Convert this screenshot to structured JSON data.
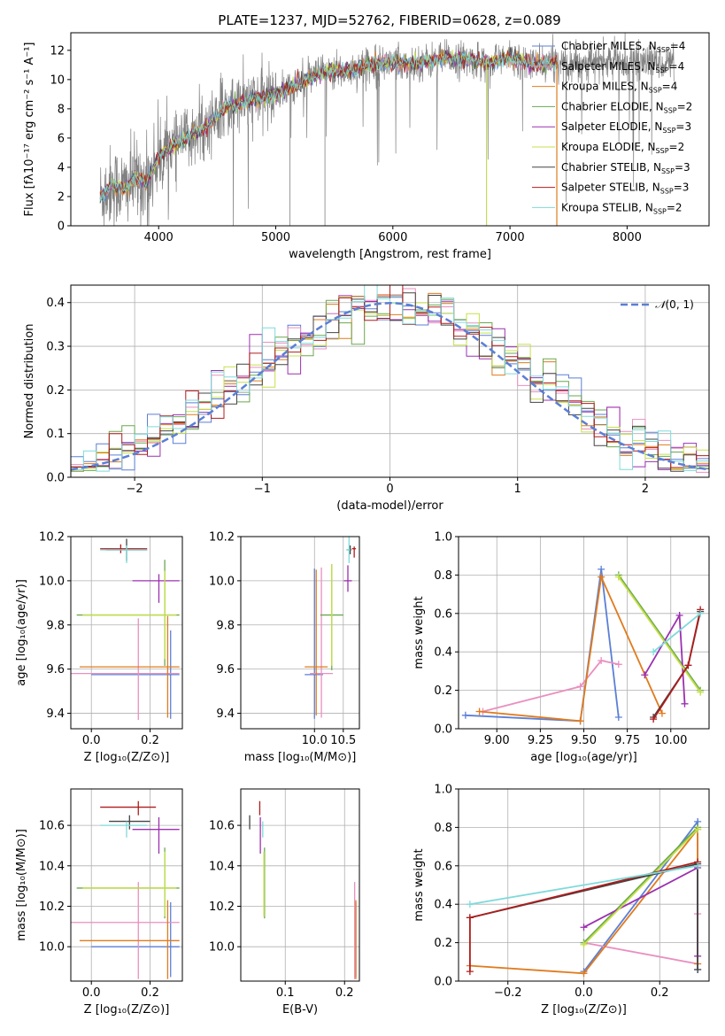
{
  "figure": {
    "title": "PLATE=1237, MJD=52762, FIBERID=0628, z=0.089"
  },
  "series_styles": [
    {
      "name": "Chabrier MILES, N_SSP=4",
      "label": "Chabrier MILES, N",
      "n": "=4",
      "color": "#5b7fd6"
    },
    {
      "name": "Salpeter MILES, N_SSP=4",
      "label": "Salpeter MILES, N",
      "n": "=4",
      "color": "#e98fbf"
    },
    {
      "name": "Kroupa MILES, N_SSP=4",
      "label": "Kroupa MILES, N",
      "n": "=4",
      "color": "#e07b1d"
    },
    {
      "name": "Chabrier ELODIE, N_SSP=2",
      "label": "Chabrier ELODIE, N",
      "n": "=2",
      "color": "#6aa84f"
    },
    {
      "name": "Salpeter ELODIE, N_SSP=3",
      "label": "Salpeter ELODIE, N",
      "n": "=3",
      "color": "#9b30b0"
    },
    {
      "name": "Kroupa ELODIE, N_SSP=2",
      "label": "Kroupa ELODIE, N",
      "n": "=2",
      "color": "#c5e04a"
    },
    {
      "name": "Chabrier STELIB, N_SSP=3",
      "label": "Chabrier STELIB, N",
      "n": "=3",
      "color": "#444444"
    },
    {
      "name": "Salpeter STELIB, N_SSP=3",
      "label": "Salpeter STELIB, N",
      "n": "=3",
      "color": "#b01c1c"
    },
    {
      "name": "Kroupa STELIB, N_SSP=2",
      "label": "Kroupa STELIB, N",
      "n": "=2",
      "color": "#7fdada"
    }
  ],
  "legend_subscript": "SSP",
  "chart_data": [
    {
      "id": "spectrum",
      "type": "line",
      "xlabel": "wavelength [Angstrom, rest frame]",
      "ylabel": "Flux [fλ10⁻¹⁷ erg cm⁻² s⁻¹ A⁻¹]",
      "xlim": [
        3250,
        8700
      ],
      "ylim": [
        0,
        13.2
      ],
      "xticks": [
        4000,
        5000,
        6000,
        7000,
        8000
      ],
      "yticks": [
        0,
        2,
        4,
        6,
        8,
        10,
        12
      ],
      "data_series": {
        "name": "data",
        "color": "#808080"
      },
      "model_anchors": {
        "x": [
          3500,
          3600,
          3700,
          3800,
          3900,
          4000,
          4100,
          4200,
          4300,
          4400,
          4500,
          4600,
          4800,
          5000,
          5200,
          5400,
          5600,
          5800,
          6000,
          6200,
          6400,
          6600,
          6800,
          7000,
          7200,
          7400
        ],
        "y": [
          2.0,
          2.8,
          2.5,
          3.2,
          3.0,
          4.7,
          5.4,
          5.8,
          6.3,
          6.7,
          7.6,
          8.2,
          8.6,
          9.0,
          9.7,
          10.5,
          10.6,
          11.0,
          11.2,
          11.1,
          11.4,
          11.4,
          11.2,
          11.5,
          11.0,
          11.2
        ]
      },
      "grid": false,
      "legend": "top-right"
    },
    {
      "id": "residuals",
      "type": "histogram",
      "xlabel": "(data-model)/error",
      "ylabel": "Normed distribution",
      "xlim": [
        -2.5,
        2.5
      ],
      "ylim": [
        0,
        0.44
      ],
      "xticks": [
        -2,
        -1,
        0,
        1,
        2
      ],
      "yticks": [
        0.0,
        0.1,
        0.2,
        0.3,
        0.4
      ],
      "bin_width": 0.1,
      "overlay": {
        "name": "N(0,1)",
        "label_main": "𝒩",
        "label_args": "(0, 1)",
        "mean": 0,
        "sigma": 1,
        "color": "#5b7fd6"
      },
      "grid": true,
      "legend": "top-right"
    },
    {
      "id": "age_vs_Z",
      "type": "errorbar",
      "xlabel": "Z [log₁₀(Z/Z⊙)]",
      "ylabel": "age  [log₁₀(age/yr)]",
      "xlim": [
        -0.07,
        0.31
      ],
      "ylim": [
        9.33,
        10.2
      ],
      "xticks": [
        0.0,
        0.2
      ],
      "yticks": [
        9.4,
        9.6,
        9.8,
        10.0,
        10.2
      ],
      "points": [
        {
          "series": 0,
          "x": 0.27,
          "y": 9.575,
          "xerr": [
            0.27,
            0.03
          ],
          "yerr": [
            0.2,
            0.2
          ]
        },
        {
          "series": 1,
          "x": 0.16,
          "y": 9.58,
          "xerr": [
            0.23,
            0.14
          ],
          "yerr": [
            0.21,
            0.25
          ]
        },
        {
          "series": 2,
          "x": 0.26,
          "y": 9.61,
          "xerr": [
            0.3,
            0.04
          ],
          "yerr": [
            0.23,
            0.23
          ]
        },
        {
          "series": 3,
          "x": 0.25,
          "y": 9.845,
          "xerr": [
            0.3,
            0.05
          ],
          "yerr": [
            0.23,
            0.25
          ]
        },
        {
          "series": 4,
          "x": 0.23,
          "y": 10.0,
          "xerr": [
            0.09,
            0.07
          ],
          "yerr": [
            0.1,
            0.03
          ]
        },
        {
          "series": 5,
          "x": 0.25,
          "y": 9.845,
          "xerr": [
            0.28,
            0.04
          ],
          "yerr": [
            0.2,
            0.2
          ]
        },
        {
          "series": 6,
          "x": 0.12,
          "y": 10.14,
          "xerr": [
            0.07,
            0.07
          ],
          "yerr": [
            0.05,
            0.05
          ]
        },
        {
          "series": 7,
          "x": 0.1,
          "y": 10.145,
          "xerr": [
            0.07,
            0.09
          ],
          "yerr": [
            0.02,
            0.02
          ]
        },
        {
          "series": 8,
          "x": 0.12,
          "y": 10.14,
          "xerr": [
            0.09,
            0.07
          ],
          "yerr": [
            0.06,
            0.02
          ]
        }
      ],
      "grid": true
    },
    {
      "id": "age_vs_mass",
      "type": "errorbar",
      "xlabel": "mass [log₁₀(M/M⊙)]",
      "ylabel": "",
      "xlim": [
        8.72,
        10.78
      ],
      "ylim": [
        9.33,
        10.2
      ],
      "xticks": [
        10.0,
        10.5
      ],
      "yticks": [
        9.4,
        9.6,
        9.8,
        10.0,
        10.2
      ],
      "points": [
        {
          "series": 0,
          "x": 10.0,
          "y": 9.575,
          "xerr": [
            0.17,
            0.15
          ],
          "yerr": [
            0.2,
            0.48
          ]
        },
        {
          "series": 1,
          "x": 10.12,
          "y": 9.58,
          "xerr": [
            0.2,
            0.2
          ],
          "yerr": [
            0.2,
            0.48
          ]
        },
        {
          "series": 2,
          "x": 10.03,
          "y": 9.61,
          "xerr": [
            0.2,
            0.2
          ],
          "yerr": [
            0.22,
            0.44
          ]
        },
        {
          "series": 3,
          "x": 10.3,
          "y": 9.845,
          "xerr": [
            0.2,
            0.2
          ],
          "yerr": [
            0.25,
            0.23
          ]
        },
        {
          "series": 4,
          "x": 10.58,
          "y": 10.0,
          "xerr": [
            0.07,
            0.07
          ],
          "yerr": [
            0.05,
            0.07
          ]
        },
        {
          "series": 5,
          "x": 10.3,
          "y": 9.845,
          "xerr": [
            0.01,
            0.01
          ],
          "yerr": [
            0.23,
            0.23
          ]
        },
        {
          "series": 6,
          "x": 10.62,
          "y": 10.14,
          "xerr": [
            0.05,
            0.02
          ],
          "yerr": [
            0.02,
            0.02
          ]
        },
        {
          "series": 7,
          "x": 10.69,
          "y": 10.145,
          "xerr": [
            0.04,
            0.03
          ],
          "yerr": [
            0.04,
            0.01
          ]
        },
        {
          "series": 8,
          "x": 10.6,
          "y": 10.14,
          "xerr": [
            0.05,
            0.02
          ],
          "yerr": [
            0.06,
            0.06
          ]
        }
      ],
      "grid": true
    },
    {
      "id": "weight_vs_age",
      "type": "line",
      "xlabel": "age  [log₁₀(age/yr)]",
      "ylabel": "mass weight",
      "xlim": [
        8.78,
        10.22
      ],
      "ylim": [
        0.0,
        1.0
      ],
      "xticks": [
        9.0,
        9.25,
        9.5,
        9.75,
        10.0
      ],
      "xtick_labels": [
        "9.00",
        "9.25",
        "9.50",
        "9.75",
        "10.00"
      ],
      "yticks": [
        0.0,
        0.2,
        0.4,
        0.6,
        0.8,
        1.0
      ],
      "series": [
        {
          "series": 0,
          "x": [
            8.82,
            9.48,
            9.6,
            9.7
          ],
          "y": [
            0.07,
            0.04,
            0.83,
            0.06
          ]
        },
        {
          "series": 1,
          "x": 8.92,
          "x_list": [
            8.92,
            9.48,
            9.6,
            9.7
          ],
          "y": [
            0.09,
            0.22,
            0.355,
            0.335
          ]
        },
        {
          "series": 2,
          "x": [
            8.9,
            9.48,
            9.6,
            9.95
          ],
          "y": [
            0.09,
            0.04,
            0.79,
            0.08
          ]
        },
        {
          "series": 3,
          "x": [
            9.7,
            10.17
          ],
          "y": [
            0.8,
            0.2
          ]
        },
        {
          "series": 4,
          "x": [
            9.85,
            10.05,
            10.08
          ],
          "y": [
            0.28,
            0.59,
            0.13
          ]
        },
        {
          "series": 5,
          "x": [
            9.7,
            10.17
          ],
          "y": [
            0.79,
            0.19
          ]
        },
        {
          "series": 6,
          "x": [
            9.9,
            10.1,
            10.17
          ],
          "y": [
            0.06,
            0.33,
            0.61
          ]
        },
        {
          "series": 7,
          "x": [
            9.9,
            10.1,
            10.17
          ],
          "y": [
            0.05,
            0.33,
            0.62
          ]
        },
        {
          "series": 8,
          "x": [
            9.9,
            10.17
          ],
          "y": [
            0.4,
            0.6
          ]
        }
      ],
      "grid": true
    },
    {
      "id": "mass_vs_Z",
      "type": "errorbar",
      "xlabel": "Z [log₁₀(Z/Z⊙)]",
      "ylabel": "mass [log₁₀(M/M⊙)]",
      "xlim": [
        -0.07,
        0.31
      ],
      "ylim": [
        9.83,
        10.78
      ],
      "xticks": [
        0.0,
        0.2
      ],
      "yticks": [
        10.0,
        10.2,
        10.4,
        10.6
      ],
      "points": [
        {
          "series": 0,
          "x": 0.27,
          "y": 10.0,
          "xerr": [
            0.27,
            0.03
          ],
          "yerr": [
            0.15,
            0.22
          ]
        },
        {
          "series": 1,
          "x": 0.16,
          "y": 10.12,
          "xerr": [
            0.23,
            0.14
          ],
          "yerr": [
            0.28,
            0.2
          ]
        },
        {
          "series": 2,
          "x": 0.26,
          "y": 10.03,
          "xerr": [
            0.3,
            0.04
          ],
          "yerr": [
            0.19,
            0.2
          ]
        },
        {
          "series": 3,
          "x": 0.25,
          "y": 10.29,
          "xerr": [
            0.3,
            0.05
          ],
          "yerr": [
            0.15,
            0.2
          ]
        },
        {
          "series": 4,
          "x": 0.23,
          "y": 10.58,
          "xerr": [
            0.09,
            0.07
          ],
          "yerr": [
            0.12,
            0.06
          ]
        },
        {
          "series": 5,
          "x": 0.25,
          "y": 10.29,
          "xerr": [
            0.28,
            0.04
          ],
          "yerr": [
            0.14,
            0.18
          ]
        },
        {
          "series": 6,
          "x": 0.13,
          "y": 10.62,
          "xerr": [
            0.07,
            0.07
          ],
          "yerr": [
            0.04,
            0.03
          ]
        },
        {
          "series": 7,
          "x": 0.16,
          "y": 10.69,
          "xerr": [
            0.13,
            0.06
          ],
          "yerr": [
            0.04,
            0.03
          ]
        },
        {
          "series": 8,
          "x": 0.12,
          "y": 10.6,
          "xerr": [
            0.09,
            0.07
          ],
          "yerr": [
            0.06,
            0.02
          ]
        }
      ],
      "grid": true
    },
    {
      "id": "mass_vs_ebv",
      "type": "errorbar",
      "xlabel": "E(B-V)",
      "ylabel": "",
      "xlim": [
        0.025,
        0.225
      ],
      "ylim": [
        9.83,
        10.78
      ],
      "xticks": [
        0.1,
        0.2
      ],
      "yticks": [
        10.0,
        10.2,
        10.4,
        10.6
      ],
      "points": [
        {
          "series": 0,
          "x": 0.219,
          "y": 10.0,
          "xerr": [
            0.0,
            0.0
          ],
          "yerr": [
            0.15,
            0.22
          ]
        },
        {
          "series": 1,
          "x": 0.217,
          "y": 10.12,
          "xerr": [
            0.0,
            0.0
          ],
          "yerr": [
            0.28,
            0.2
          ]
        },
        {
          "series": 2,
          "x": 0.219,
          "y": 10.03,
          "xerr": [
            0.0,
            0.0
          ],
          "yerr": [
            0.19,
            0.2
          ]
        },
        {
          "series": 3,
          "x": 0.065,
          "y": 10.29,
          "xerr": [
            0.0,
            0.0
          ],
          "yerr": [
            0.15,
            0.2
          ]
        },
        {
          "series": 4,
          "x": 0.058,
          "y": 10.58,
          "xerr": [
            0.0,
            0.0
          ],
          "yerr": [
            0.12,
            0.06
          ]
        },
        {
          "series": 5,
          "x": 0.064,
          "y": 10.29,
          "xerr": [
            0.0,
            0.0
          ],
          "yerr": [
            0.14,
            0.18
          ]
        },
        {
          "series": 6,
          "x": 0.04,
          "y": 10.62,
          "xerr": [
            0.0,
            0.0
          ],
          "yerr": [
            0.04,
            0.03
          ]
        },
        {
          "series": 7,
          "x": 0.057,
          "y": 10.69,
          "xerr": [
            0.0,
            0.0
          ],
          "yerr": [
            0.04,
            0.03
          ]
        },
        {
          "series": 8,
          "x": 0.062,
          "y": 10.6,
          "xerr": [
            0.0,
            0.0
          ],
          "yerr": [
            0.06,
            0.02
          ]
        }
      ],
      "grid": true
    },
    {
      "id": "weight_vs_Z",
      "type": "line",
      "xlabel": "Z [log₁₀(Z/Z⊙)]",
      "ylabel": "mass weight",
      "xlim": [
        -0.33,
        0.33
      ],
      "ylim": [
        0.0,
        1.0
      ],
      "xticks": [
        -0.2,
        0.0,
        0.2
      ],
      "yticks": [
        0.0,
        0.2,
        0.4,
        0.6,
        0.8,
        1.0
      ],
      "series": [
        {
          "series": 0,
          "x": [
            0.0,
            0.3,
            0.3
          ],
          "y": [
            0.05,
            0.83,
            0.06
          ]
        },
        {
          "series": 1,
          "x": [
            0.0,
            0.3,
            0.3
          ],
          "y": [
            0.2,
            0.09,
            0.35
          ]
        },
        {
          "series": 2,
          "x": [
            -0.3,
            0.0,
            0.3,
            0.3
          ],
          "y": [
            0.08,
            0.04,
            0.79,
            0.09
          ]
        },
        {
          "series": 3,
          "x": [
            0.0,
            0.3
          ],
          "y": [
            0.2,
            0.8
          ]
        },
        {
          "series": 4,
          "x": [
            0.0,
            0.3,
            0.3
          ],
          "y": [
            0.28,
            0.59,
            0.13
          ]
        },
        {
          "series": 5,
          "x": [
            0.0,
            0.3
          ],
          "y": [
            0.19,
            0.79
          ]
        },
        {
          "series": 6,
          "x": [
            -0.3,
            0.3,
            0.3
          ],
          "y": [
            0.33,
            0.61,
            0.06
          ]
        },
        {
          "series": 7,
          "x": [
            -0.3,
            -0.3,
            0.3
          ],
          "y": [
            0.05,
            0.33,
            0.62
          ]
        },
        {
          "series": 8,
          "x": [
            -0.3,
            0.3
          ],
          "y": [
            0.4,
            0.6
          ]
        }
      ],
      "grid": true
    }
  ]
}
